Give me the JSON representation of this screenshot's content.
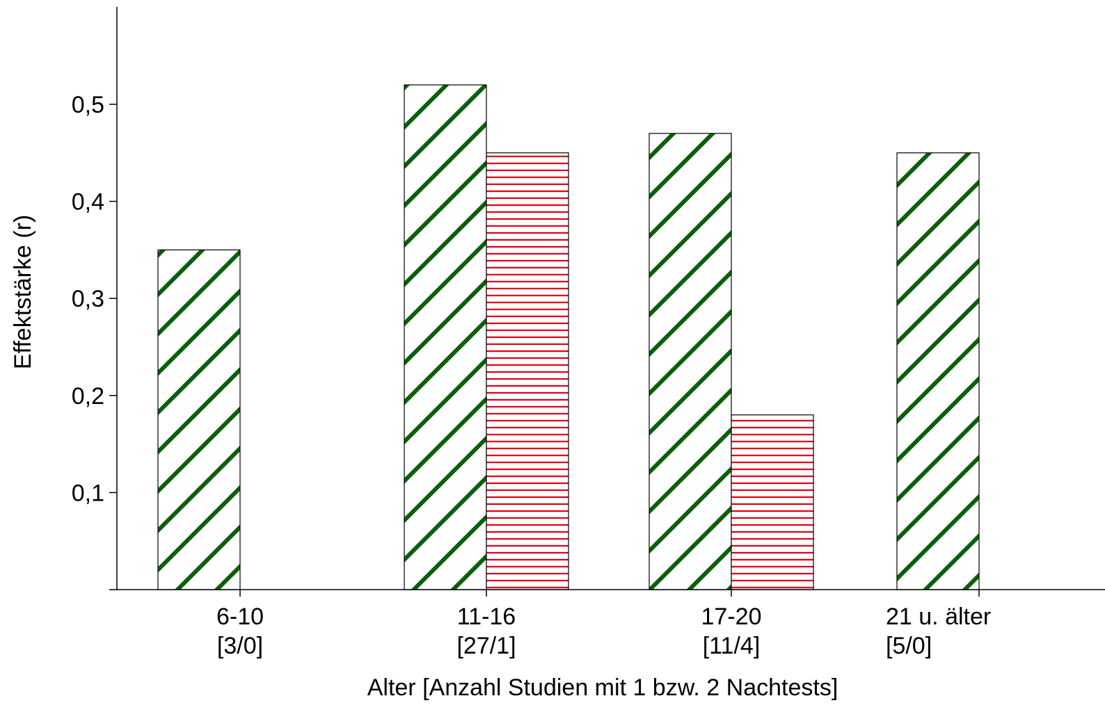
{
  "chart_data": {
    "type": "bar",
    "title": "",
    "xlabel": "Alter [Anzahl Studien mit 1 bzw. 2 Nachtests]",
    "ylabel": "Effektstärke (r)",
    "ylim": [
      0,
      0.6
    ],
    "yticks": [
      {
        "value": 0.1,
        "label": "0,1"
      },
      {
        "value": 0.2,
        "label": "0,2"
      },
      {
        "value": 0.3,
        "label": "0,3"
      },
      {
        "value": 0.4,
        "label": "0,4"
      },
      {
        "value": 0.5,
        "label": "0,5"
      }
    ],
    "categories": [
      {
        "label": "6-10",
        "sublabel": "[3/0]"
      },
      {
        "label": "11-16",
        "sublabel": "[27/1]"
      },
      {
        "label": "17-20",
        "sublabel": "[11/4]"
      },
      {
        "label": "21 u. älter",
        "sublabel": "[5/0]"
      }
    ],
    "series": [
      {
        "values": [
          0.35,
          0.52,
          0.47,
          0.45
        ],
        "color": "#0b5e0b",
        "pattern": "diagonal-hatch"
      },
      {
        "values": [
          null,
          0.45,
          0.18,
          null
        ],
        "color": "#e3001b",
        "pattern": "horizontal-lines"
      }
    ],
    "grid": false,
    "legend": "none"
  }
}
